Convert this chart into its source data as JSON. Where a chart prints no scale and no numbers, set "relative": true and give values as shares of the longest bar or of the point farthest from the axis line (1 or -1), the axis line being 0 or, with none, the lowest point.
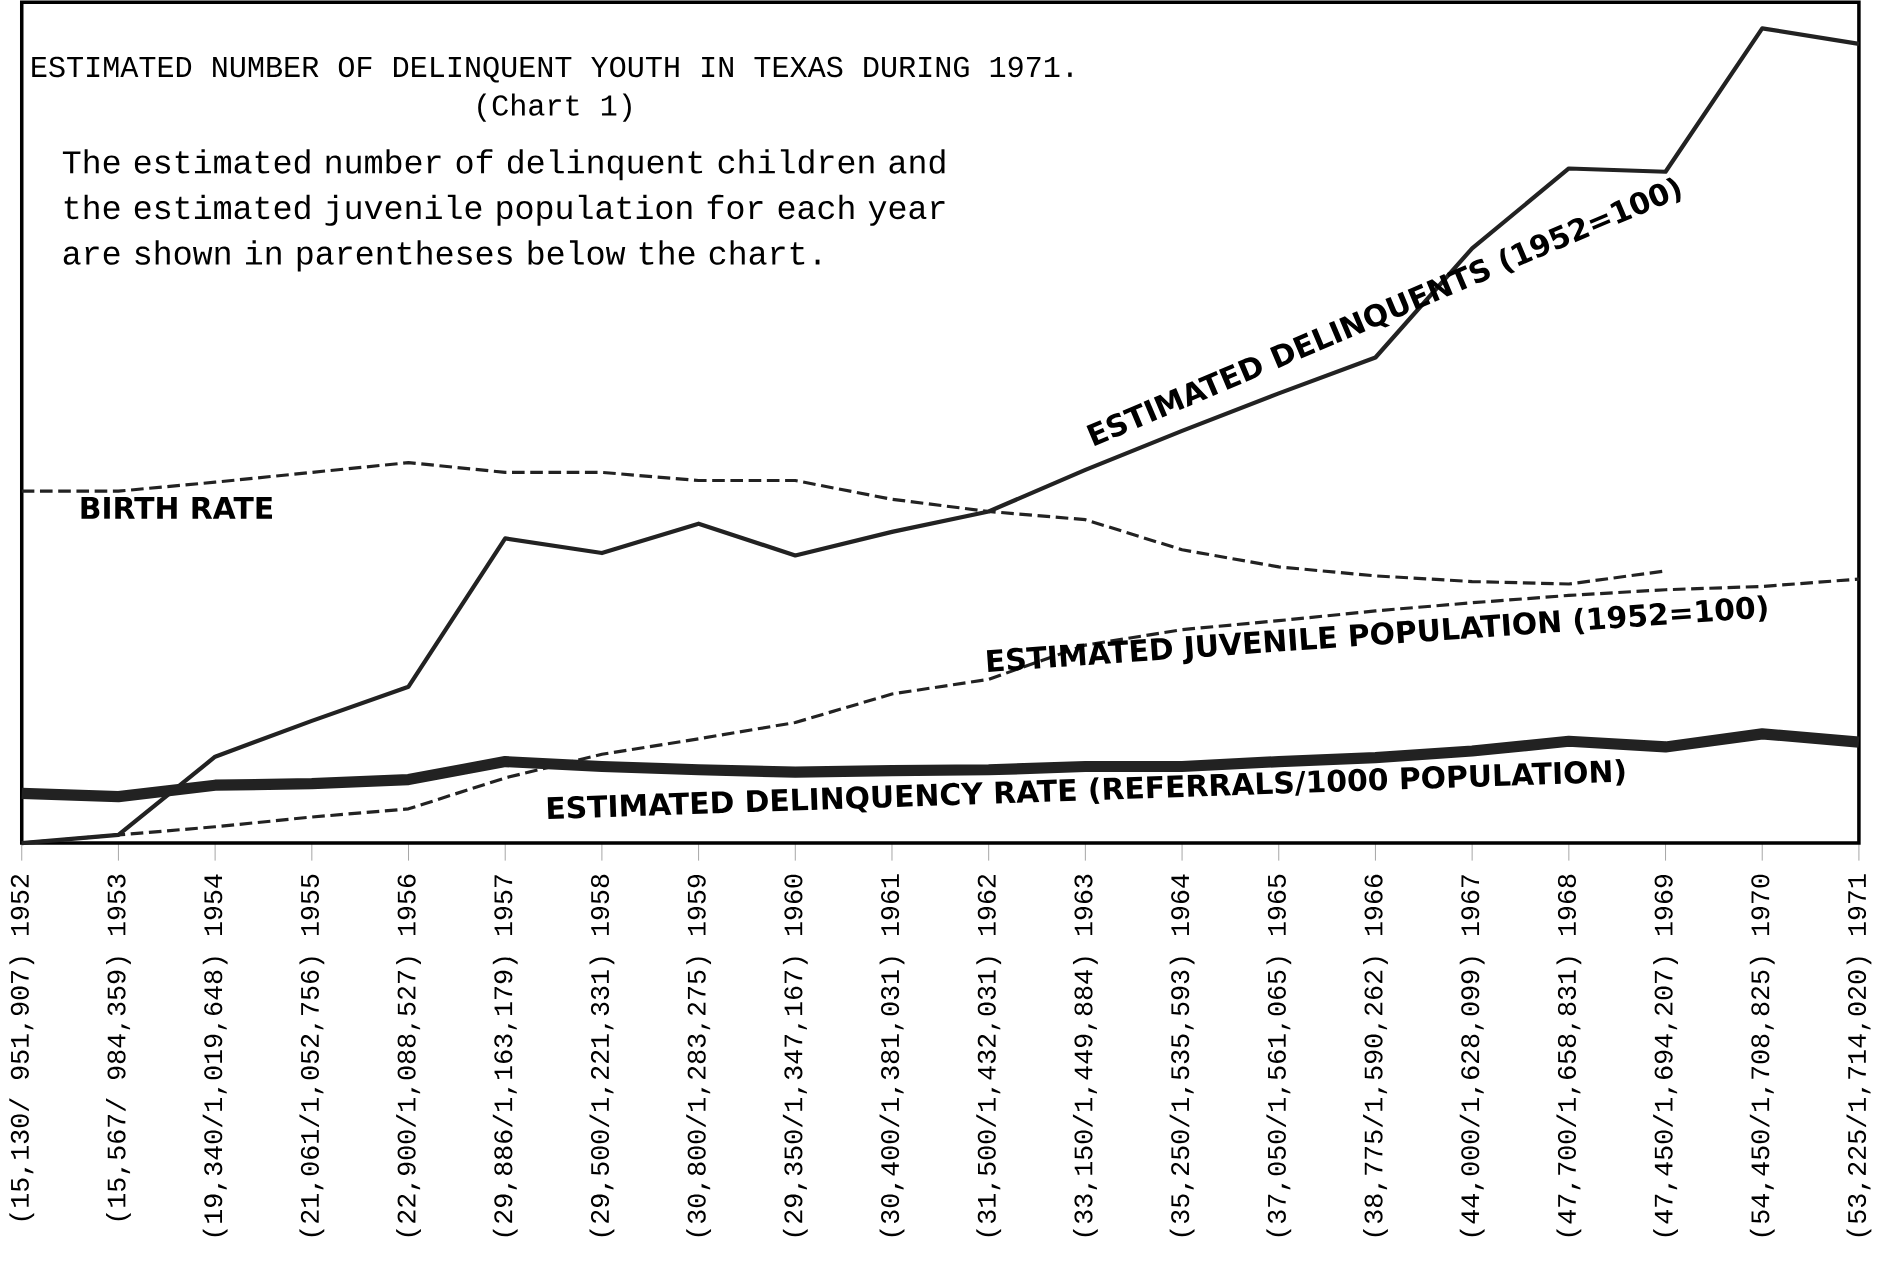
{
  "chart_data": {
    "type": "line",
    "title": "ESTIMATED NUMBER OF DELINQUENT YOUTH IN TEXAS DURING 1971.",
    "subtitle": "(Chart 1)",
    "annotations": [
      "The estimated number of delinquent children and the estimated juvenile population for each year are shown in parentheses below the chart."
    ],
    "categories": [
      "(15,130/ 951,907) 1952",
      "(15,567/ 984,359) 1953",
      "(19,340/1,019,648) 1954",
      "(21,061/1,052,756) 1955",
      "(22,900/1,088,527) 1956",
      "(29,886/1,163,179) 1957",
      "(29,500/1,221,331) 1958",
      "(30,800/1,283,275) 1959",
      "(29,350/1,347,167) 1960",
      "(30,400/1,381,031) 1961",
      "(31,500/1,432,031) 1962",
      "(33,150/1,449,884) 1963",
      "(35,250/1,535,593) 1964",
      "(37,050/1,561,065) 1965",
      "(38,775/1,590,262) 1966",
      "(44,000/1,628,099) 1967",
      "(47,700/1,658,831) 1968",
      "(47,450/1,694,207) 1969",
      "(54,450/1,708,825) 1970",
      "(53,225/1,714,020) 1971"
    ],
    "relative": true,
    "marker": "none",
    "grid": false,
    "series": [
      {
        "name": "ESTIMATED DELINQUENTS (1952=100)",
        "color": "#222222",
        "line_style": "solid",
        "values": [
          0,
          0.01,
          0.106,
          0.15,
          0.192,
          0.374,
          0.356,
          0.392,
          0.353,
          0.382,
          0.407,
          0.458,
          0.506,
          0.552,
          0.596,
          0.73,
          0.828,
          0.824,
          1.0,
          0.981
        ]
      },
      {
        "name": "BIRTH RATE",
        "color": "#222222",
        "line_style": "dashed",
        "values": [
          0.432,
          0.432,
          0.443,
          0.455,
          0.467,
          0.455,
          0.455,
          0.445,
          0.445,
          0.422,
          0.407,
          0.397,
          0.36,
          0.339,
          0.328,
          0.321,
          0.318,
          0.334,
          null,
          null
        ]
      },
      {
        "name": "ESTIMATED JUVENILE POPULATION (1952=100)",
        "color": "#222222",
        "line_style": "dashed",
        "values": [
          0,
          0.01,
          0.02,
          0.032,
          0.042,
          0.08,
          0.109,
          0.128,
          0.148,
          0.183,
          0.201,
          0.243,
          0.262,
          0.273,
          0.285,
          0.295,
          0.304,
          0.311,
          0.315,
          0.324
        ]
      },
      {
        "name": "ESTIMATED DELINQUENCY RATE (REFERRALS/1000 POPULATION)",
        "color": "#222222",
        "line_style": "solid",
        "values": [
          0.061,
          0.057,
          0.071,
          0.073,
          0.078,
          0.1,
          0.094,
          0.09,
          0.087,
          0.089,
          0.09,
          0.094,
          0.094,
          0.1,
          0.105,
          0.113,
          0.125,
          0.118,
          0.134,
          0.124
        ]
      }
    ]
  }
}
